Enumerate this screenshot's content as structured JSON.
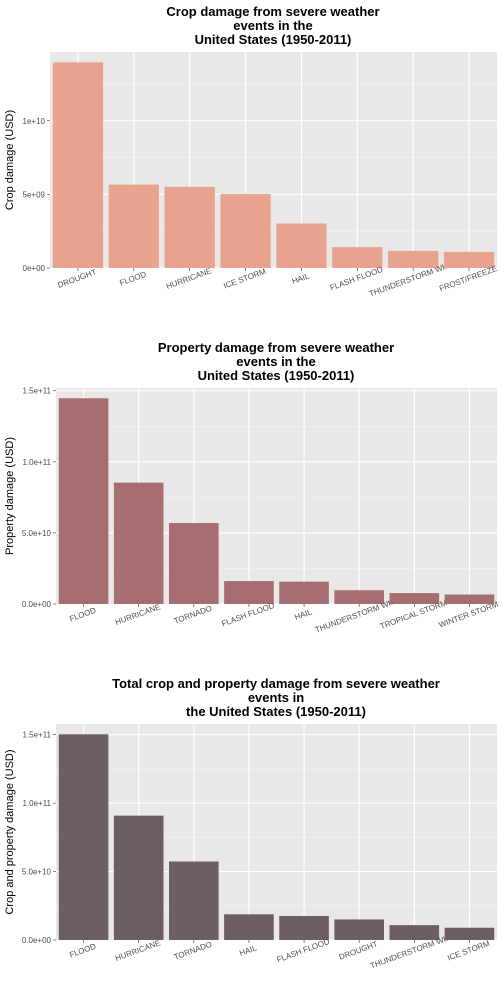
{
  "chart_data": [
    {
      "type": "bar",
      "title_lines": [
        "Crop damage from severe weather",
        "events in the",
        "United States (1950-2011)"
      ],
      "ylabel": "Crop damage (USD)",
      "categories": [
        "DROUGHT",
        "FLOOD",
        "HURRICANE",
        "ICE STORM",
        "HAIL",
        "FLASH FLOOD",
        "THUNDERSTORM WIND",
        "FROST/FREEZE"
      ],
      "values": [
        13970000000,
        5662000000,
        5516000000,
        5022000000,
        3026000000,
        1421000000,
        1159000000,
        1094000000
      ],
      "ylim": [
        0,
        14670000000
      ],
      "yticks": [
        0,
        5000000000,
        10000000000
      ],
      "ytick_labels": [
        "0e+00",
        "5e+09",
        "1e+10"
      ],
      "bar_color": "#e8a38e",
      "grid": true
    },
    {
      "type": "bar",
      "title_lines": [
        "Property damage from severe weather",
        "events in the",
        "United States (1950-2011)"
      ],
      "ylabel": "Property damage (USD)",
      "categories": [
        "FLOOD",
        "HURRICANE",
        "TORNADO",
        "FLASH FLOOD",
        "HAIL",
        "THUNDERSTORM WIND",
        "TROPICAL STORM",
        "WINTER STORM"
      ],
      "values": [
        144700000000,
        85360000000,
        56940000000,
        16140000000,
        15730000000,
        9700000000,
        7700000000,
        6690000000
      ],
      "ylim": [
        0,
        151930000000
      ],
      "yticks": [
        0,
        50000000000,
        100000000000,
        150000000000
      ],
      "ytick_labels": [
        "0.0e+00",
        "5.0e+10",
        "1.0e+11",
        "1.5e+11"
      ],
      "bar_color": "#a76e72",
      "grid": true
    },
    {
      "type": "bar",
      "title_lines": [
        "Total crop and property damage from severe weather",
        "events in",
        "the United States (1950-2011)"
      ],
      "ylabel": "Crop and property damage (USD)",
      "categories": [
        "FLOOD",
        "HURRICANE",
        "TORNADO",
        "HAIL",
        "FLASH FLOOD",
        "DROUGHT",
        "THUNDERSTORM WIND",
        "ICE STORM"
      ],
      "values": [
        150300000000,
        90870000000,
        57360000000,
        18760000000,
        17560000000,
        15020000000,
        10860000000,
        8970000000
      ],
      "ylim": [
        0,
        157810000000
      ],
      "yticks": [
        0,
        50000000000,
        100000000000,
        150000000000
      ],
      "ytick_labels": [
        "0.0e+00",
        "5.0e+10",
        "1.0e+11",
        "1.5e+11"
      ],
      "bar_color": "#6c5f63",
      "grid": true
    }
  ]
}
